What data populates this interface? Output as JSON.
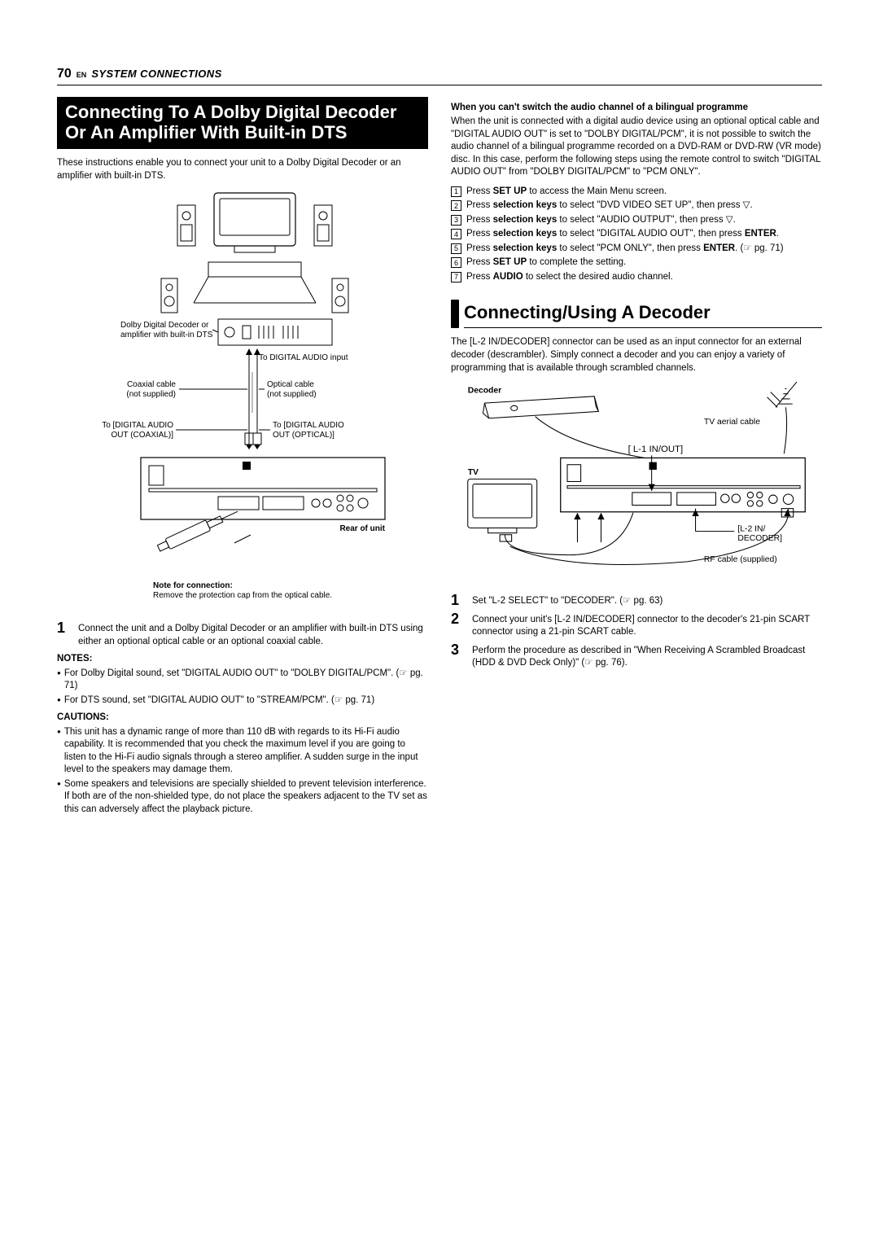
{
  "header": {
    "page_num": "70",
    "lang": "EN",
    "section": "SYSTEM CONNECTIONS"
  },
  "left": {
    "banner": "Connecting To A Dolby Digital Decoder Or An Amplifier With Built-in DTS",
    "intro": "These instructions enable you to connect your unit to a Dolby Digital Decoder or an amplifier with built-in DTS.",
    "diagram": {
      "label_decoder": "Dolby Digital Decoder or amplifier with built-in DTS",
      "label_to_input": "To DIGITAL AUDIO input",
      "label_coax": "Coaxial cable (not supplied)",
      "label_optical": "Optical cable (not supplied)",
      "label_coax_port": "To [DIGITAL AUDIO OUT (COAXIAL)]",
      "label_optical_port": "To [DIGITAL AUDIO OUT (OPTICAL)]",
      "label_rear": "Rear of unit",
      "label_note_head": "Note for connection:",
      "label_note_body": "Remove the protection cap from the optical cable."
    },
    "step1": "Connect the unit and a Dolby Digital Decoder or an amplifier with built-in DTS using either an optional optical cable or an optional coaxial cable.",
    "notes_head": "NOTES:",
    "notes": [
      "For Dolby Digital sound, set \"DIGITAL AUDIO OUT\" to \"DOLBY DIGITAL/PCM\". (☞ pg. 71)",
      "For DTS sound, set \"DIGITAL AUDIO OUT\" to \"STREAM/PCM\". (☞ pg. 71)"
    ],
    "cautions_head": "CAUTIONS:",
    "cautions": [
      "This unit has a dynamic range of more than 110 dB with regards to its Hi-Fi audio capability. It is recommended that you check the maximum level if you are going to listen to the Hi-Fi audio signals through a stereo amplifier. A sudden surge in the input level to the speakers may damage them.",
      "Some speakers and televisions are specially shielded to prevent television interference. If both are of the non-shielded type, do not place the speakers adjacent to the TV set as this can adversely affect the playback picture."
    ]
  },
  "right": {
    "bilingual_head": "When you can't switch the audio channel of a bilingual programme",
    "bilingual_body": "When the unit is connected with a digital audio device using an optional optical cable and \"DIGITAL AUDIO OUT\" is set to \"DOLBY DIGITAL/PCM\", it is not possible to switch the audio channel of a bilingual programme recorded on a DVD-RAM or DVD-RW (VR mode) disc. In this case, perform the following steps using the remote control to switch \"DIGITAL AUDIO OUT\" from \"DOLBY DIGITAL/PCM\" to \"PCM ONLY\".",
    "boxsteps": [
      {
        "n": "1",
        "pre": "Press ",
        "b": "SET UP",
        "post": " to access the Main Menu screen."
      },
      {
        "n": "2",
        "pre": "Press ",
        "b": "selection keys",
        "post": " to select \"DVD VIDEO SET UP\", then press ▽."
      },
      {
        "n": "3",
        "pre": "Press ",
        "b": "selection keys",
        "post": " to select \"AUDIO OUTPUT\", then press ▽."
      },
      {
        "n": "4",
        "pre": "Press ",
        "b": "selection keys",
        "post": " to select \"DIGITAL AUDIO OUT\", then press ",
        "b2": "ENTER",
        "post2": "."
      },
      {
        "n": "5",
        "pre": "Press ",
        "b": "selection keys",
        "post": " to select \"PCM ONLY\", then press ",
        "b2": "ENTER",
        "post2": ". (☞ pg. 71)"
      },
      {
        "n": "6",
        "pre": "Press ",
        "b": "SET UP",
        "post": " to complete the setting."
      },
      {
        "n": "7",
        "pre": "Press ",
        "b": "AUDIO",
        "post": " to select the desired audio channel."
      }
    ],
    "banner2": "Connecting/Using A Decoder",
    "decoder_intro": "The [L-2 IN/DECODER] connector can be used as an input connector for an external decoder (descrambler). Simply connect a decoder and you can enjoy a variety of programming that is available through scrambled channels.",
    "diagram2": {
      "label_decoder": "Decoder",
      "label_aerial": "TV aerial cable",
      "label_tv": "TV",
      "label_l1": "L-1 IN/OUT]",
      "label_l1_bracket": "[",
      "label_l2": "[L-2 IN/\nDECODER]",
      "label_rf": "RF cable (supplied)"
    },
    "steps2": [
      "Set \"L-2 SELECT\" to \"DECODER\". (☞ pg. 63)",
      "Connect your unit's [L-2 IN/DECODER] connector to the decoder's 21-pin SCART connector using a 21-pin SCART cable.",
      "Perform the procedure as described in \"When Receiving A Scrambled Broadcast (HDD & DVD Deck Only)\" (☞ pg. 76)."
    ]
  },
  "style": {
    "bg": "#ffffff",
    "fg": "#000000",
    "banner_bg": "#000000",
    "banner_fg": "#ffffff",
    "body_fontsize": 11.5,
    "banner_fontsize": 22,
    "pagenum_fontsize": 16
  }
}
